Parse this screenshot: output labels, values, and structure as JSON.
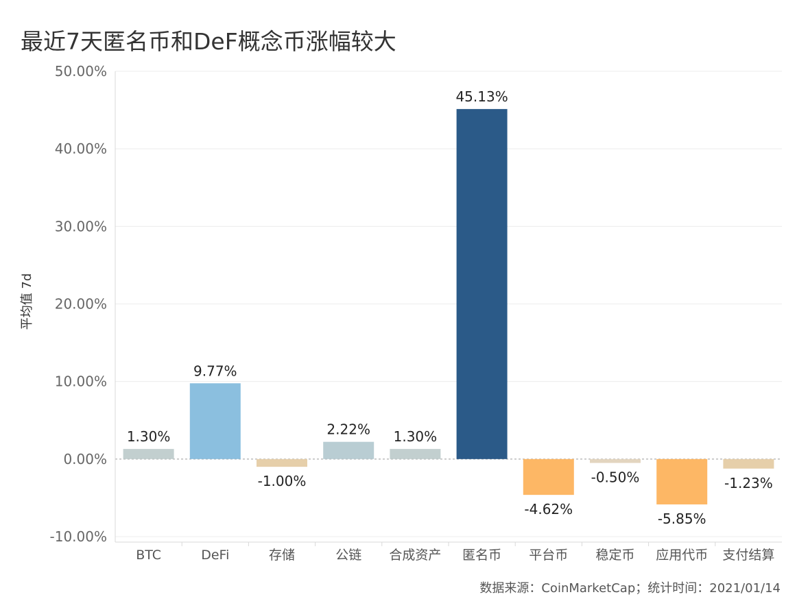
{
  "chart_data": {
    "type": "bar",
    "title": "最近7天匿名币和DeF概念币涨幅较大",
    "ylabel": "平均值 7d",
    "xlabel": "",
    "ylim": [
      -10,
      50
    ],
    "yticks": [
      50,
      40,
      30,
      20,
      10,
      0,
      -10
    ],
    "ytick_labels": [
      "50.00%",
      "40.00%",
      "30.00%",
      "20.00%",
      "10.00%",
      "0.00%",
      "-10.00%"
    ],
    "categories": [
      "BTC",
      "DeFi",
      "存储",
      "公链",
      "合成资产",
      "匿名币",
      "平台币",
      "稳定币",
      "应用代币",
      "支付结算"
    ],
    "values": [
      1.3,
      9.77,
      -1.0,
      2.22,
      1.3,
      45.13,
      -4.62,
      -0.5,
      -5.85,
      -1.23
    ],
    "value_labels": [
      "1.30%",
      "9.77%",
      "-1.00%",
      "2.22%",
      "1.30%",
      "45.13%",
      "-4.62%",
      "-0.50%",
      "-5.85%",
      "-1.23%"
    ],
    "colors": [
      "#c2cfcf",
      "#8bbfdf",
      "#e6cfaa",
      "#b9cdd3",
      "#c2cfcf",
      "#2b5a88",
      "#fdb765",
      "#e3d5bf",
      "#fdb765",
      "#e6cfaa"
    ],
    "grid": true,
    "source": "数据来源：CoinMarketCap；统计时间：2021/01/14"
  }
}
